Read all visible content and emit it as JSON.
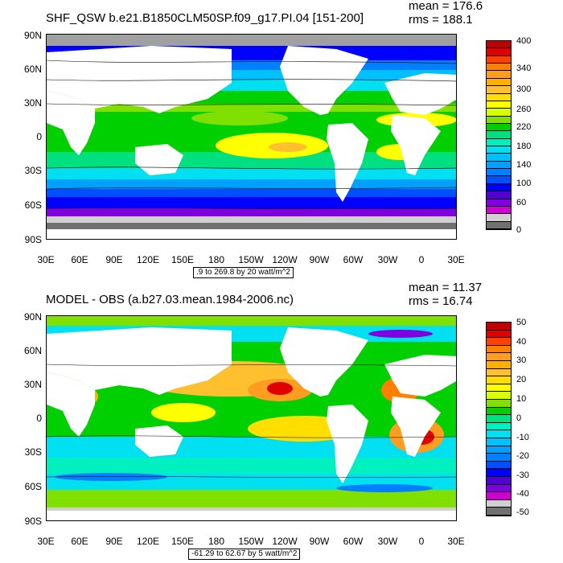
{
  "panels": [
    {
      "title": "SHF_QSW b.e21.B1850CLM50SP.f09_g17.PI.04 [151-200]",
      "mean": "mean = 176.6",
      "rms": "rms = 188.1",
      "range_note": ".9 to 269.8 by 20 watt/m^2",
      "lat_labels": [
        "90N",
        "60N",
        "30N",
        "0",
        "30S",
        "60S",
        "90S"
      ],
      "lon_labels": [
        "30E",
        "60E",
        "90E",
        "120E",
        "150E",
        "180",
        "150W",
        "120W",
        "90W",
        "60W",
        "30W",
        "0",
        "30E"
      ],
      "colorbar_labels": [
        "400",
        "340",
        "300",
        "260",
        "220",
        "180",
        "140",
        "100",
        "60",
        "0"
      ],
      "colorbar_colors": [
        "#c00000",
        "#e00000",
        "#ff4000",
        "#ff8000",
        "#ff9d20",
        "#ffb000",
        "#ffc030",
        "#ffde00",
        "#ffff00",
        "#d8ff00",
        "#80e000",
        "#00d000",
        "#00e080",
        "#00f0c0",
        "#00e0f0",
        "#00c0ff",
        "#00a0ff",
        "#0080ff",
        "#0050ff",
        "#0000ff",
        "#5000d0",
        "#8000e0",
        "#d000d0",
        "#d0d0d0",
        "#707070"
      ]
    },
    {
      "title": "MODEL - OBS (a.b27.03.mean.1984-2006.nc)",
      "mean": "mean = 11.37",
      "rms": "rms = 16.74",
      "range_note": "-61.29 to 62.67 by 5 watt/m^2",
      "lat_labels": [
        "90N",
        "60N",
        "30N",
        "0",
        "30S",
        "60S",
        "90S"
      ],
      "lon_labels": [
        "30E",
        "60E",
        "90E",
        "120E",
        "150E",
        "180",
        "150W",
        "120W",
        "90W",
        "60W",
        "30W",
        "0",
        "30E"
      ],
      "colorbar_labels": [
        "50",
        "40",
        "30",
        "20",
        "10",
        "0",
        "-10",
        "-20",
        "-30",
        "-40",
        "-50"
      ],
      "colorbar_colors": [
        "#c00000",
        "#e00000",
        "#ff4000",
        "#ff8000",
        "#ff9d20",
        "#ffb000",
        "#ffc030",
        "#ffde00",
        "#ffff00",
        "#d8ff00",
        "#80e000",
        "#00d000",
        "#00e080",
        "#00f0c0",
        "#00e0f0",
        "#00c0ff",
        "#00a0ff",
        "#0080ff",
        "#0050ff",
        "#0000ff",
        "#5000d0",
        "#8000e0",
        "#d000d0",
        "#d0d0d0",
        "#707070"
      ]
    }
  ]
}
